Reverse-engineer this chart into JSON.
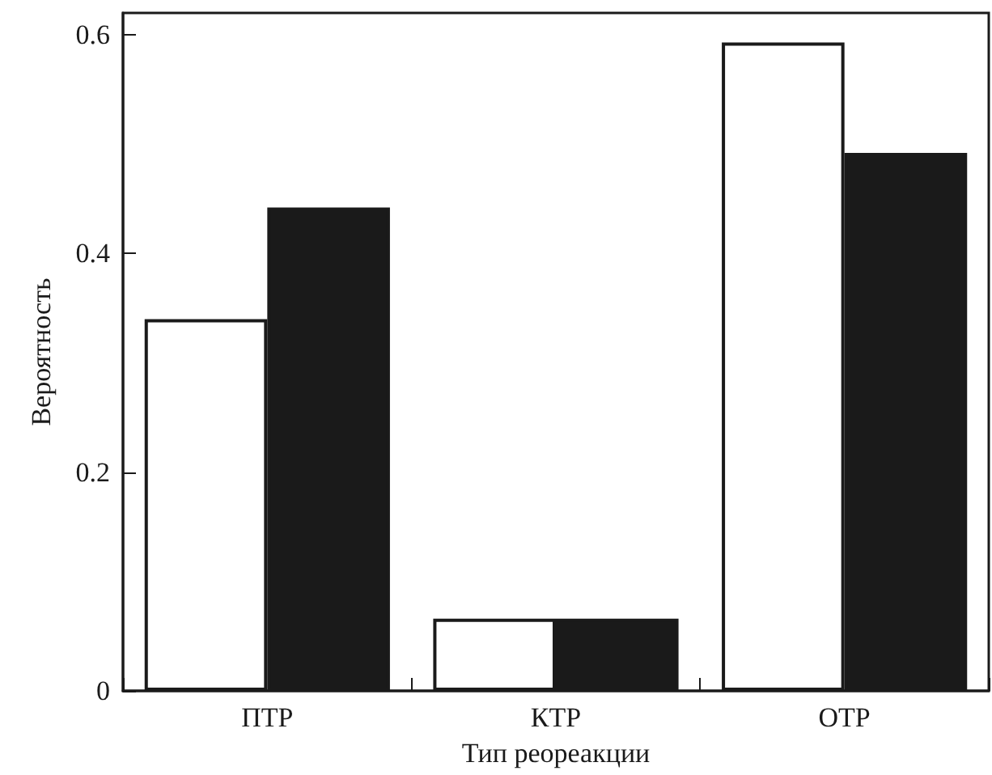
{
  "chart_data": {
    "type": "bar",
    "xlabel": "Тип реореакции",
    "ylabel": "Вероятность",
    "categories": [
      "ПТР",
      "КТР",
      "ОТР"
    ],
    "series": [
      {
        "color": "#ffffff",
        "values": [
          0.34,
          0.066,
          0.593
        ]
      },
      {
        "color": "#1a1a1a",
        "values": [
          0.442,
          0.066,
          0.492
        ]
      }
    ],
    "ylim": [
      0,
      0.62
    ],
    "yticks": [
      0,
      0.2,
      0.4,
      0.6
    ],
    "grid": false
  }
}
